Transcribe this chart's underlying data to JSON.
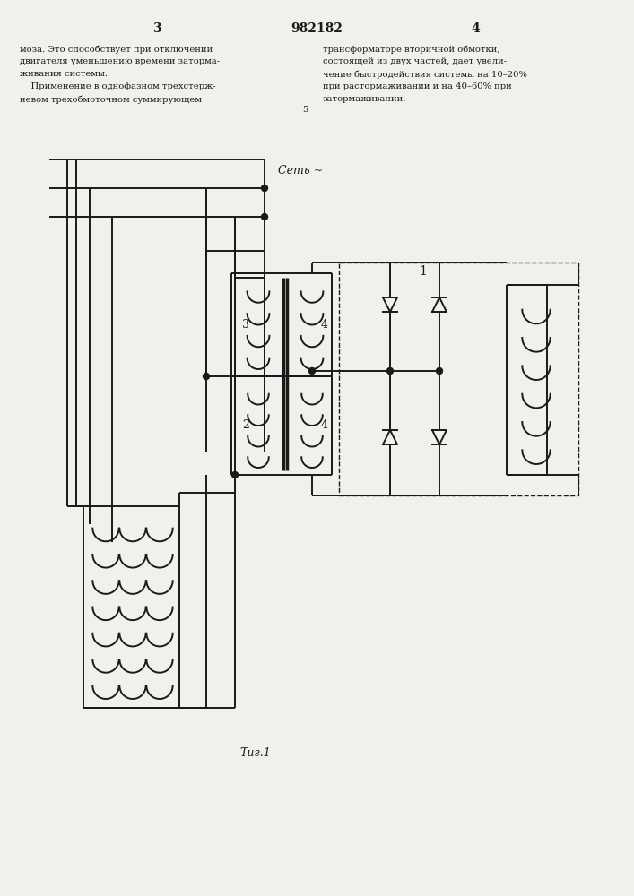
{
  "bg_color": "#f2f0ed",
  "line_color": "#1a1a1a",
  "text_color": "#1a1a1a",
  "page_num_left": "3",
  "page_num_center": "982182",
  "page_num_right": "4",
  "text_left_lines": [
    "моза. Это способствует при отключении",
    "двигателя уменьшению времени заторма-",
    "живания системы.",
    "    Применение в однофазном трехстерж-",
    "невом трехобмоточном суммирующем"
  ],
  "text_right_lines": [
    "трансформаторе вторичной обмотки,",
    "состоящей из двух частей, дает увели-",
    "чение быстродействия системы на 10–20%",
    "при растормаживании и на 40–60% при",
    "затормаживании."
  ],
  "col_num": "5",
  "label_set": "Сеть ~",
  "label_1": "1",
  "label_2": "2",
  "label_3": "3",
  "label_4a": "4",
  "label_4b": "4",
  "fig_caption": "Τиг.1"
}
